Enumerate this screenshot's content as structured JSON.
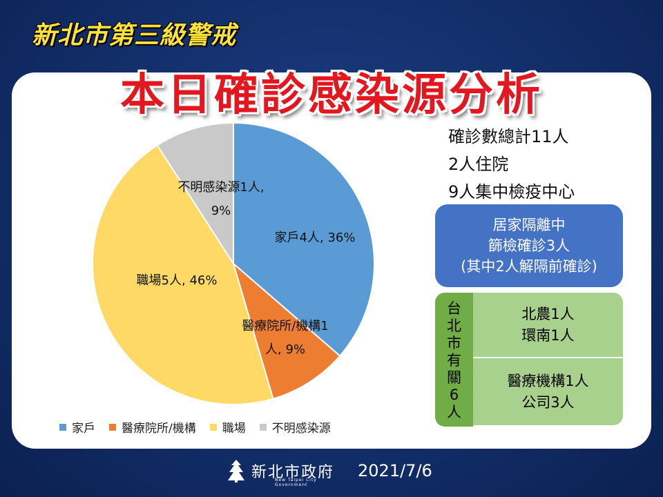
{
  "header": {
    "series_title": "新北市第三級警戒",
    "main_title": "本日確診感染源分析"
  },
  "chart_data": {
    "type": "pie",
    "slices": [
      {
        "name": "家戶",
        "value": 4,
        "percent": 36,
        "color": "#5b9bd5",
        "label_line1": "家戶4人, 36%",
        "label_line2": ""
      },
      {
        "name": "醫療院所/機構",
        "value": 1,
        "percent": 9,
        "color": "#ed7d31",
        "label_line1": "醫療院所/機構1",
        "label_line2": "人, 9%"
      },
      {
        "name": "職場",
        "value": 5,
        "percent": 46,
        "color": "#ffd966",
        "label_line1": "職場5人, 46%",
        "label_line2": ""
      },
      {
        "name": "不明感染源",
        "value": 1,
        "percent": 9,
        "color": "#c9c9c9",
        "label_line1": "不明感染源1人,",
        "label_line2": "9%"
      }
    ],
    "legend": [
      "家戶",
      "醫療院所/機構",
      "職場",
      "不明感染源"
    ]
  },
  "summary": {
    "total": "確診數總計11人",
    "hospitalized": "2人住院",
    "quarantine": "9人集中檢疫中心"
  },
  "home_isolation": {
    "line1": "居家隔離中",
    "line2": "篩檢確診3人",
    "line3": "(其中2人解隔前確診)"
  },
  "taipei_related": {
    "label": "台北市有關6人",
    "label_chars": [
      "台",
      "北",
      "市",
      "有",
      "關",
      "6",
      "人"
    ],
    "group1": {
      "line1": "北農1人",
      "line2": "環南1人"
    },
    "group2": {
      "line1": "醫療機構1人",
      "line2": "公司3人"
    }
  },
  "footer": {
    "org_name": "新北市政府",
    "org_name_en": "New Taipei City Government",
    "date": "2021/7/6",
    "logo_icon": "new-taipei-city-logo-icon"
  },
  "colors": {
    "background": "#0f2a63",
    "title_red": "#e3171f",
    "series_yellow": "#ffe23a",
    "blue_box": "#4472c4",
    "green_dark": "#70ad47",
    "green_light": "#a9d18e"
  }
}
